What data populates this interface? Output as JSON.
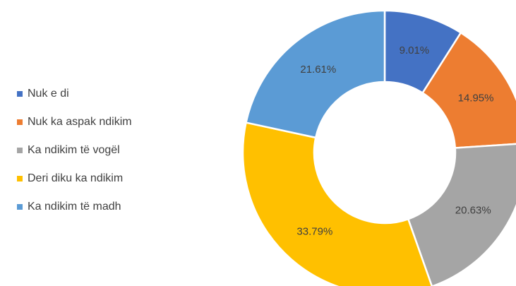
{
  "chart_data": {
    "type": "donut",
    "categories": [
      "Nuk e di",
      "Nuk ka aspak ndikim",
      "Ka ndikim të vogël",
      "Deri diku ka ndikim",
      "Ka ndikim të madh"
    ],
    "values": [
      9.01,
      14.95,
      20.63,
      33.79,
      21.61
    ],
    "value_labels": [
      "9.01%",
      "14.95%",
      "20.63%",
      "33.79%",
      "21.61%"
    ],
    "colors": [
      "#4472c4",
      "#ed7d31",
      "#a5a5a5",
      "#ffc000",
      "#5b9bd5"
    ],
    "legend": "left"
  }
}
